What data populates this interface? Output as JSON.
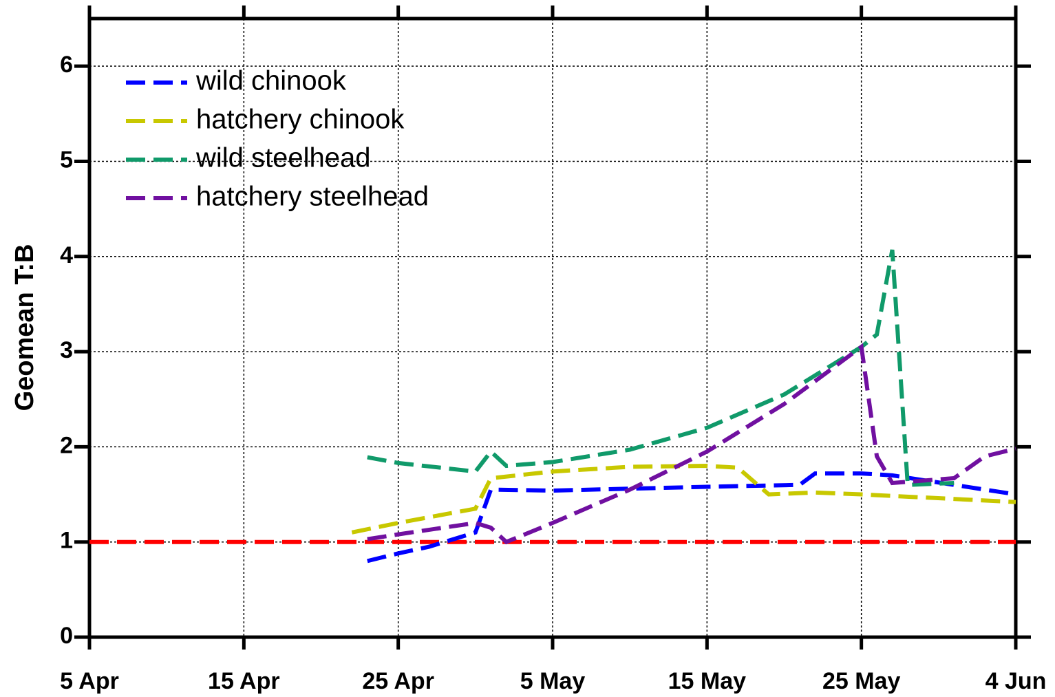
{
  "chart_data": {
    "type": "line",
    "y_label": "Geomean T:B",
    "xlim": [
      "5 Apr",
      "4 Jun"
    ],
    "xticks": [
      "5 Apr",
      "15 Apr",
      "25 Apr",
      "5 May",
      "15 May",
      "25 May",
      "4 Jun"
    ],
    "ylim": [
      0,
      6.5
    ],
    "yticks": [
      0,
      1,
      2,
      3,
      4,
      5,
      6
    ],
    "grid": true,
    "legend": "upper left",
    "reference_line": {
      "value": 1,
      "color": "#ff0000"
    },
    "series": [
      {
        "name": "wild chinook",
        "color": "#0000ff",
        "x": [
          "23 Apr",
          "25 Apr",
          "27 Apr",
          "30 Apr",
          "1 May",
          "5 May",
          "15 May",
          "21 May",
          "22 May",
          "25 May",
          "27 May",
          "4 Jun"
        ],
        "values": [
          0.8,
          0.88,
          0.95,
          1.1,
          1.55,
          1.54,
          1.58,
          1.6,
          1.72,
          1.72,
          1.7,
          1.5
        ]
      },
      {
        "name": "hatchery chinook",
        "color": "#c8c800",
        "x": [
          "22 Apr",
          "25 Apr",
          "30 Apr",
          "1 May",
          "5 May",
          "10 May",
          "15 May",
          "17 May",
          "19 May",
          "22 May",
          "25 May",
          "4 Jun"
        ],
        "values": [
          1.1,
          1.2,
          1.35,
          1.67,
          1.74,
          1.79,
          1.8,
          1.78,
          1.5,
          1.52,
          1.5,
          1.42
        ]
      },
      {
        "name": "wild steelhead",
        "color": "#109a6a",
        "x": [
          "23 Apr",
          "25 Apr",
          "30 Apr",
          "1 May",
          "2 May",
          "5 May",
          "10 May",
          "15 May",
          "20 May",
          "25 May",
          "26 May",
          "27 May",
          "28 May",
          "31 May"
        ],
        "values": [
          1.89,
          1.83,
          1.74,
          1.95,
          1.8,
          1.84,
          1.97,
          2.2,
          2.55,
          3.05,
          3.18,
          4.07,
          1.6,
          1.62
        ]
      },
      {
        "name": "hatchery steelhead",
        "color": "#7010a0",
        "x": [
          "23 Apr",
          "25 Apr",
          "30 Apr",
          "1 May",
          "2 May",
          "5 May",
          "10 May",
          "15 May",
          "20 May",
          "25 May",
          "26 May",
          "27 May",
          "31 May",
          "2 Jun",
          "4 Jun"
        ],
        "values": [
          1.03,
          1.08,
          1.2,
          1.15,
          1.0,
          1.2,
          1.55,
          1.95,
          2.45,
          3.05,
          1.9,
          1.62,
          1.67,
          1.9,
          1.98
        ]
      }
    ]
  }
}
